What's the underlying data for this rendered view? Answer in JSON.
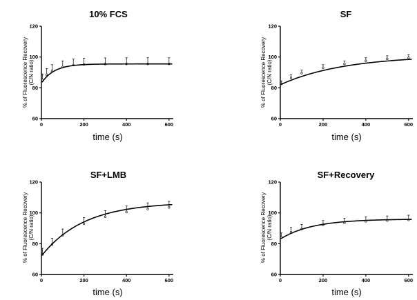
{
  "chart_data": [
    {
      "type": "scatter",
      "title": "10% FCS",
      "ylabel": "% of Fluorescence Recovery",
      "ylabel2": "(C/N ratio)",
      "xlabel": "time (s)",
      "xlim": [
        0,
        620
      ],
      "ylim": [
        60,
        120
      ],
      "xticks": [
        0,
        200,
        400,
        600
      ],
      "yticks": [
        60,
        80,
        100,
        120
      ],
      "grid": false,
      "fit": {
        "start": 83,
        "plateau": 95.5,
        "tau": 60
      },
      "error_bar_size": 4.0,
      "data_points": [
        {
          "x": 5,
          "y": 85.0
        },
        {
          "x": 25,
          "y": 88.5
        },
        {
          "x": 50,
          "y": 91.0
        },
        {
          "x": 100,
          "y": 93.5
        },
        {
          "x": 150,
          "y": 94.7
        },
        {
          "x": 200,
          "y": 95.2
        },
        {
          "x": 300,
          "y": 95.4
        },
        {
          "x": 400,
          "y": 95.5
        },
        {
          "x": 500,
          "y": 95.5
        },
        {
          "x": 600,
          "y": 95.5
        }
      ]
    },
    {
      "type": "scatter",
      "title": "SF",
      "ylabel": "% of Fluorescence Recovery",
      "ylabel2": "(C/N ratio)",
      "xlabel": "time (s)",
      "xlim": [
        0,
        620
      ],
      "ylim": [
        60,
        120
      ],
      "xticks": [
        0,
        200,
        400,
        600
      ],
      "yticks": [
        60,
        80,
        100,
        120
      ],
      "grid": false,
      "fit": {
        "start": 82,
        "plateau": 101,
        "tau": 300
      },
      "error_bar_size": 2.0,
      "data_points": [
        {
          "x": 5,
          "y": 82.5
        },
        {
          "x": 50,
          "y": 86.5
        },
        {
          "x": 100,
          "y": 89.5
        },
        {
          "x": 200,
          "y": 93.0
        },
        {
          "x": 300,
          "y": 95.5
        },
        {
          "x": 400,
          "y": 97.5
        },
        {
          "x": 500,
          "y": 98.8
        },
        {
          "x": 600,
          "y": 99.5
        }
      ]
    },
    {
      "type": "scatter",
      "title": "SF+LMB",
      "ylabel": "% of Fluorescence Recovery",
      "ylabel2": "(C/N ratio)",
      "xlabel": "time (s)",
      "xlim": [
        0,
        620
      ],
      "ylim": [
        60,
        120
      ],
      "xticks": [
        0,
        200,
        400,
        600
      ],
      "yticks": [
        60,
        80,
        100,
        120
      ],
      "grid": false,
      "fit": {
        "start": 72,
        "plateau": 107,
        "tau": 200
      },
      "error_bar_size": 4.0,
      "data_points": [
        {
          "x": 5,
          "y": 73.0
        },
        {
          "x": 50,
          "y": 79.5
        },
        {
          "x": 100,
          "y": 85.5
        },
        {
          "x": 200,
          "y": 93.0
        },
        {
          "x": 300,
          "y": 97.5
        },
        {
          "x": 400,
          "y": 100.5
        },
        {
          "x": 500,
          "y": 102.5
        },
        {
          "x": 600,
          "y": 103.5
        }
      ]
    },
    {
      "type": "scatter",
      "title": "SF+Recovery",
      "ylabel": "% of Fluorescence Recovery",
      "ylabel2": "(C/N ratio)",
      "xlabel": "time (s)",
      "xlim": [
        0,
        620
      ],
      "ylim": [
        60,
        120
      ],
      "xticks": [
        0,
        200,
        400,
        600
      ],
      "yticks": [
        60,
        80,
        100,
        120
      ],
      "grid": false,
      "fit": {
        "start": 83,
        "plateau": 96,
        "tau": 150
      },
      "error_bar_size": 3.0,
      "data_points": [
        {
          "x": 5,
          "y": 84.0
        },
        {
          "x": 50,
          "y": 87.5
        },
        {
          "x": 100,
          "y": 89.5
        },
        {
          "x": 200,
          "y": 92.0
        },
        {
          "x": 300,
          "y": 93.5
        },
        {
          "x": 400,
          "y": 94.5
        },
        {
          "x": 500,
          "y": 95.0
        },
        {
          "x": 600,
          "y": 95.5
        }
      ]
    }
  ]
}
